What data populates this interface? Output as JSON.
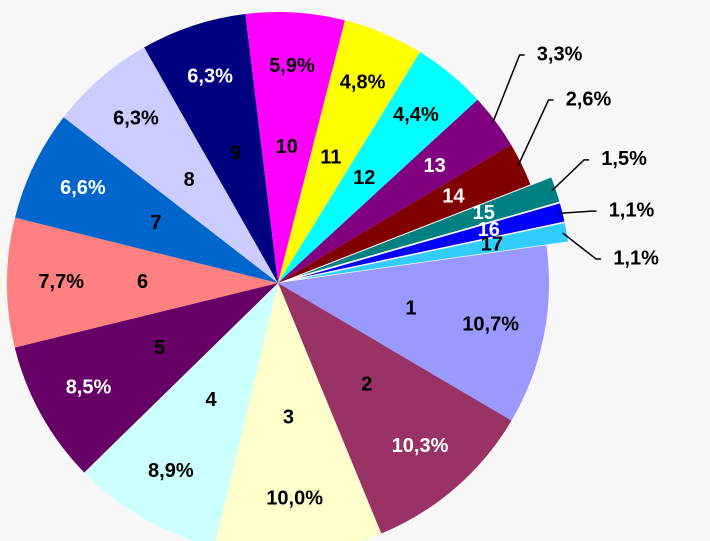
{
  "chart_data": {
    "type": "pie",
    "categories": [
      "1",
      "2",
      "3",
      "4",
      "5",
      "6",
      "7",
      "8",
      "9",
      "10",
      "11",
      "12",
      "13",
      "14",
      "15",
      "16",
      "17"
    ],
    "values": [
      10.7,
      10.3,
      10.0,
      8.9,
      8.5,
      7.7,
      6.6,
      6.3,
      6.3,
      5.9,
      4.8,
      4.4,
      3.3,
      2.6,
      1.5,
      1.1,
      1.1
    ],
    "value_labels": [
      "10,7%",
      "10,3%",
      "10,0%",
      "8,9%",
      "8,5%",
      "7,7%",
      "6,6%",
      "6,3%",
      "6,3%",
      "5,9%",
      "4,8%",
      "4,4%",
      "3,3%",
      "2,6%",
      "1,5%",
      "1,1%",
      "1,1%"
    ],
    "colors": [
      "#9999ff",
      "#993366",
      "#ffffcc",
      "#ccffff",
      "#660066",
      "#ff8080",
      "#0066cc",
      "#ccccff",
      "#000080",
      "#ff00ff",
      "#ffff00",
      "#00ffff",
      "#800080",
      "#800000",
      "#008080",
      "#0000ff",
      "#33ccff"
    ],
    "exploded": [
      "15",
      "16",
      "17"
    ]
  }
}
